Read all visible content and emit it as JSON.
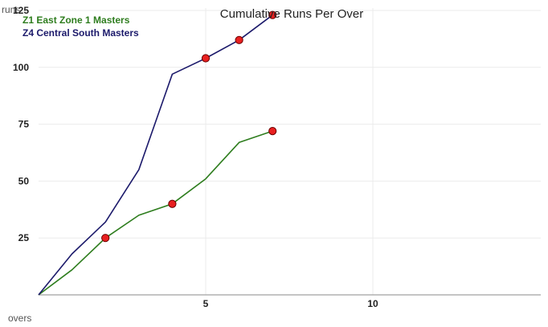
{
  "chart_data": {
    "type": "line",
    "title": "Cumulative Runs Per Over",
    "xlabel": "overs",
    "ylabel": "runs",
    "xlim": [
      0,
      15
    ],
    "ylim": [
      0,
      125
    ],
    "x_ticks": [
      5,
      10
    ],
    "y_ticks": [
      25,
      50,
      75,
      100,
      125
    ],
    "grid": true,
    "legend_position": "top-left",
    "series": [
      {
        "name": "Z1 East Zone 1 Masters",
        "color": "#2e7d1e",
        "x": [
          0,
          1,
          2,
          3,
          4,
          5,
          6,
          7
        ],
        "values": [
          0,
          11,
          25,
          35,
          40,
          51,
          67,
          72
        ],
        "wicket_overs": [
          2,
          4,
          7
        ]
      },
      {
        "name": "Z4 Central South Masters",
        "color": "#1c1a6b",
        "x": [
          0,
          1,
          2,
          3,
          4,
          5,
          6,
          7
        ],
        "values": [
          0,
          18,
          32,
          55,
          97,
          104,
          112,
          123
        ],
        "wicket_overs": [
          5,
          6,
          7
        ]
      }
    ],
    "marker_color": "#e82020"
  }
}
